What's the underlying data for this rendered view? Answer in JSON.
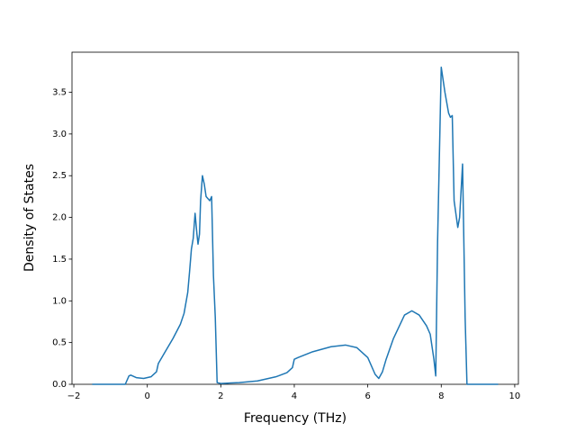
{
  "chart_data": {
    "type": "line",
    "xlabel": "Frequency (THz)",
    "ylabel": "Density of States",
    "x": [
      -1.5,
      -0.6,
      -0.5,
      -0.45,
      -0.3,
      -0.1,
      0.1,
      0.25,
      0.3,
      0.5,
      0.7,
      0.9,
      1.0,
      1.1,
      1.15,
      1.2,
      1.25,
      1.3,
      1.35,
      1.38,
      1.42,
      1.45,
      1.5,
      1.55,
      1.6,
      1.7,
      1.75,
      1.8,
      1.85,
      1.9,
      2.0,
      2.5,
      3.0,
      3.5,
      3.8,
      3.95,
      4.0,
      4.1,
      4.5,
      5.0,
      5.4,
      5.7,
      6.0,
      6.2,
      6.3,
      6.4,
      6.5,
      6.7,
      7.0,
      7.2,
      7.4,
      7.6,
      7.7,
      7.8,
      7.85,
      7.9,
      8.0,
      8.1,
      8.2,
      8.25,
      8.3,
      8.35,
      8.45,
      8.5,
      8.58,
      8.65,
      8.7,
      9.55
    ],
    "series": [
      {
        "color": "#1f77b4",
        "values": [
          0,
          0,
          0.1,
          0.11,
          0.08,
          0.07,
          0.09,
          0.15,
          0.25,
          0.4,
          0.55,
          0.72,
          0.85,
          1.1,
          1.35,
          1.62,
          1.75,
          2.05,
          1.8,
          1.68,
          1.8,
          2.2,
          2.5,
          2.4,
          2.25,
          2.2,
          2.25,
          1.3,
          0.8,
          0.02,
          0.01,
          0.02,
          0.04,
          0.09,
          0.14,
          0.2,
          0.3,
          0.32,
          0.39,
          0.45,
          0.47,
          0.44,
          0.32,
          0.12,
          0.07,
          0.15,
          0.3,
          0.55,
          0.83,
          0.88,
          0.83,
          0.7,
          0.6,
          0.3,
          0.1,
          1.7,
          3.8,
          3.5,
          3.25,
          3.2,
          3.22,
          2.2,
          1.88,
          2.0,
          2.64,
          0.8,
          0,
          0
        ]
      }
    ],
    "xlim": [
      -2.05,
      10.1
    ],
    "xticks": [
      {
        "value": -2,
        "label": "−2"
      },
      0,
      2,
      4,
      6,
      8,
      10
    ],
    "ylim": [
      0,
      3.98
    ],
    "yticks": [
      {
        "value": 0,
        "label": "0.0"
      },
      0.5,
      {
        "value": 1,
        "label": "1.0"
      },
      1.5,
      {
        "value": 2,
        "label": "2.0"
      },
      2.5,
      {
        "value": 3,
        "label": "3.0"
      },
      3.5
    ]
  }
}
